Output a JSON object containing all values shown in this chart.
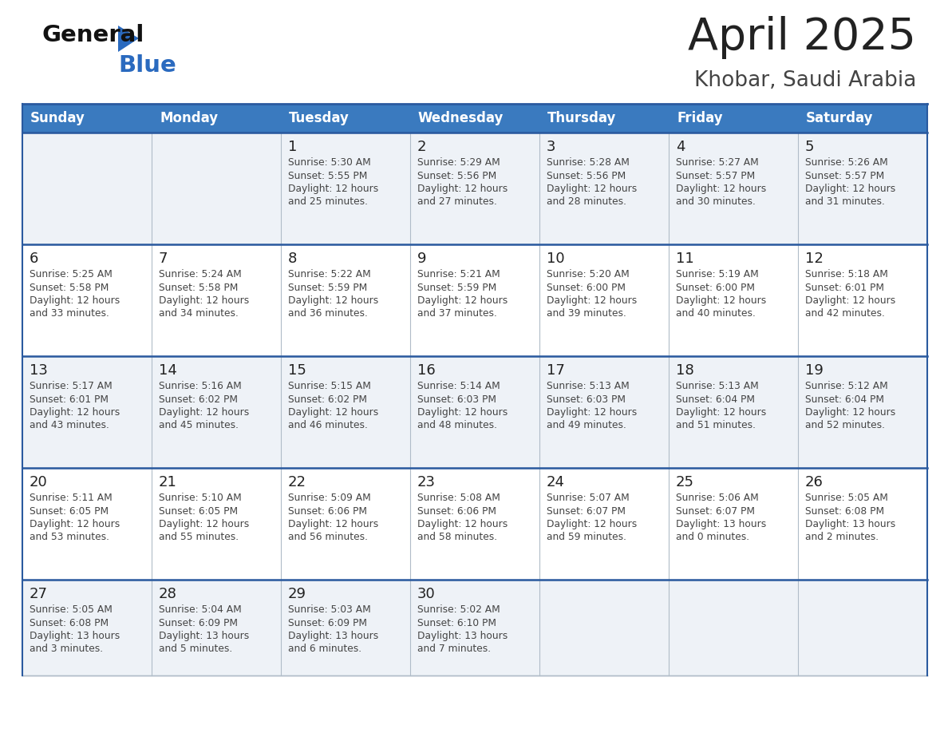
{
  "title": "April 2025",
  "subtitle": "Khobar, Saudi Arabia",
  "header_bg": "#3a7abf",
  "header_text_color": "#ffffff",
  "weekdays": [
    "Sunday",
    "Monday",
    "Tuesday",
    "Wednesday",
    "Thursday",
    "Friday",
    "Saturday"
  ],
  "row_bg_even": "#eef2f7",
  "row_bg_odd": "#ffffff",
  "cell_border_color": "#b0bcc8",
  "header_border_color": "#2a5a9f",
  "day_number_color": "#222222",
  "info_text_color": "#444444",
  "title_color": "#222222",
  "subtitle_color": "#444444",
  "logo_general_color": "#111111",
  "logo_blue_color": "#2a6abf",
  "logo_triangle_color": "#2a6abf",
  "calendar_data": [
    [
      {
        "day": "",
        "sunrise": "",
        "sunset": "",
        "daylight": ""
      },
      {
        "day": "",
        "sunrise": "",
        "sunset": "",
        "daylight": ""
      },
      {
        "day": "1",
        "sunrise": "5:30 AM",
        "sunset": "5:55 PM",
        "daylight": "12 hours and 25 minutes."
      },
      {
        "day": "2",
        "sunrise": "5:29 AM",
        "sunset": "5:56 PM",
        "daylight": "12 hours and 27 minutes."
      },
      {
        "day": "3",
        "sunrise": "5:28 AM",
        "sunset": "5:56 PM",
        "daylight": "12 hours and 28 minutes."
      },
      {
        "day": "4",
        "sunrise": "5:27 AM",
        "sunset": "5:57 PM",
        "daylight": "12 hours and 30 minutes."
      },
      {
        "day": "5",
        "sunrise": "5:26 AM",
        "sunset": "5:57 PM",
        "daylight": "12 hours and 31 minutes."
      }
    ],
    [
      {
        "day": "6",
        "sunrise": "5:25 AM",
        "sunset": "5:58 PM",
        "daylight": "12 hours and 33 minutes."
      },
      {
        "day": "7",
        "sunrise": "5:24 AM",
        "sunset": "5:58 PM",
        "daylight": "12 hours and 34 minutes."
      },
      {
        "day": "8",
        "sunrise": "5:22 AM",
        "sunset": "5:59 PM",
        "daylight": "12 hours and 36 minutes."
      },
      {
        "day": "9",
        "sunrise": "5:21 AM",
        "sunset": "5:59 PM",
        "daylight": "12 hours and 37 minutes."
      },
      {
        "day": "10",
        "sunrise": "5:20 AM",
        "sunset": "6:00 PM",
        "daylight": "12 hours and 39 minutes."
      },
      {
        "day": "11",
        "sunrise": "5:19 AM",
        "sunset": "6:00 PM",
        "daylight": "12 hours and 40 minutes."
      },
      {
        "day": "12",
        "sunrise": "5:18 AM",
        "sunset": "6:01 PM",
        "daylight": "12 hours and 42 minutes."
      }
    ],
    [
      {
        "day": "13",
        "sunrise": "5:17 AM",
        "sunset": "6:01 PM",
        "daylight": "12 hours and 43 minutes."
      },
      {
        "day": "14",
        "sunrise": "5:16 AM",
        "sunset": "6:02 PM",
        "daylight": "12 hours and 45 minutes."
      },
      {
        "day": "15",
        "sunrise": "5:15 AM",
        "sunset": "6:02 PM",
        "daylight": "12 hours and 46 minutes."
      },
      {
        "day": "16",
        "sunrise": "5:14 AM",
        "sunset": "6:03 PM",
        "daylight": "12 hours and 48 minutes."
      },
      {
        "day": "17",
        "sunrise": "5:13 AM",
        "sunset": "6:03 PM",
        "daylight": "12 hours and 49 minutes."
      },
      {
        "day": "18",
        "sunrise": "5:13 AM",
        "sunset": "6:04 PM",
        "daylight": "12 hours and 51 minutes."
      },
      {
        "day": "19",
        "sunrise": "5:12 AM",
        "sunset": "6:04 PM",
        "daylight": "12 hours and 52 minutes."
      }
    ],
    [
      {
        "day": "20",
        "sunrise": "5:11 AM",
        "sunset": "6:05 PM",
        "daylight": "12 hours and 53 minutes."
      },
      {
        "day": "21",
        "sunrise": "5:10 AM",
        "sunset": "6:05 PM",
        "daylight": "12 hours and 55 minutes."
      },
      {
        "day": "22",
        "sunrise": "5:09 AM",
        "sunset": "6:06 PM",
        "daylight": "12 hours and 56 minutes."
      },
      {
        "day": "23",
        "sunrise": "5:08 AM",
        "sunset": "6:06 PM",
        "daylight": "12 hours and 58 minutes."
      },
      {
        "day": "24",
        "sunrise": "5:07 AM",
        "sunset": "6:07 PM",
        "daylight": "12 hours and 59 minutes."
      },
      {
        "day": "25",
        "sunrise": "5:06 AM",
        "sunset": "6:07 PM",
        "daylight": "13 hours and 0 minutes."
      },
      {
        "day": "26",
        "sunrise": "5:05 AM",
        "sunset": "6:08 PM",
        "daylight": "13 hours and 2 minutes."
      }
    ],
    [
      {
        "day": "27",
        "sunrise": "5:05 AM",
        "sunset": "6:08 PM",
        "daylight": "13 hours and 3 minutes."
      },
      {
        "day": "28",
        "sunrise": "5:04 AM",
        "sunset": "6:09 PM",
        "daylight": "13 hours and 5 minutes."
      },
      {
        "day": "29",
        "sunrise": "5:03 AM",
        "sunset": "6:09 PM",
        "daylight": "13 hours and 6 minutes."
      },
      {
        "day": "30",
        "sunrise": "5:02 AM",
        "sunset": "6:10 PM",
        "daylight": "13 hours and 7 minutes."
      },
      {
        "day": "",
        "sunrise": "",
        "sunset": "",
        "daylight": ""
      },
      {
        "day": "",
        "sunrise": "",
        "sunset": "",
        "daylight": ""
      },
      {
        "day": "",
        "sunrise": "",
        "sunset": "",
        "daylight": ""
      }
    ]
  ]
}
